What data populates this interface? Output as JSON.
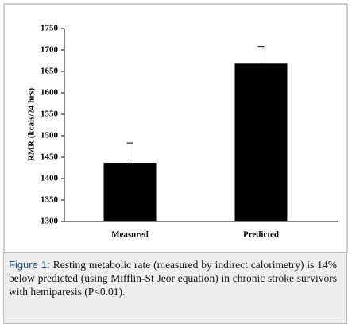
{
  "chart_data": {
    "type": "bar",
    "y_label": "RMR (kcals/24 hrs)",
    "categories": [
      "Measured",
      "Predicted"
    ],
    "values": [
      1437,
      1668
    ],
    "errors": [
      46,
      40
    ],
    "color": "#000000",
    "ylim": [
      1300,
      1750
    ],
    "yticks": [
      1300,
      1350,
      1400,
      1450,
      1500,
      1550,
      1600,
      1650,
      1700,
      1750
    ]
  },
  "caption": {
    "label": "Figure 1:",
    "text": "Resting metabolic rate (measured by indirect calorimetry) is 14% below predicted (using Mifflin-St Jeor equation) in chronic stroke survivors with hemiparesis (P<0.01)."
  }
}
